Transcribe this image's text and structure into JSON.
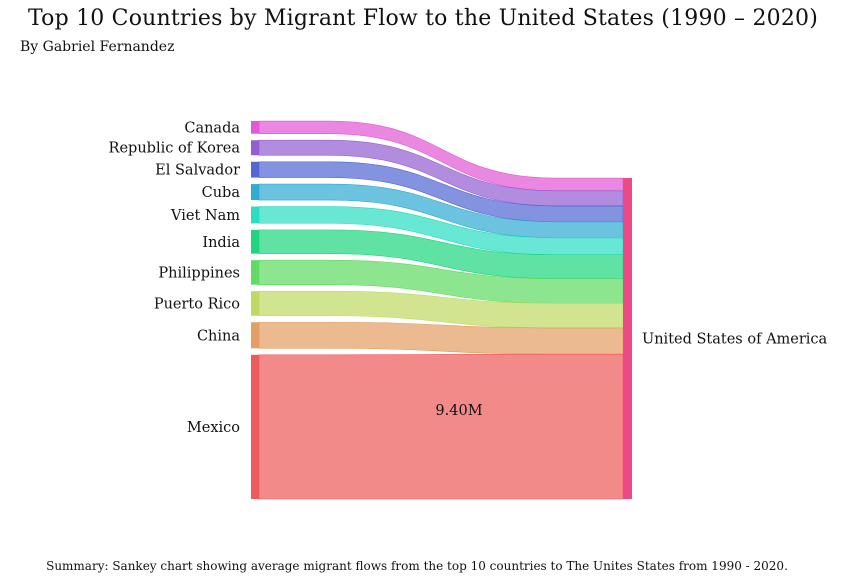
{
  "chart_data": {
    "type": "sankey",
    "title": "Top 10 Countries by Migrant Flow to the United States (1990 – 2020)",
    "subtitle": "By Gabriel Fernandez",
    "summary": "Summary: Sankey chart showing average migrant flows from the top 10 countries to The Unites States from 1990 - 2020.",
    "target": {
      "name": "United States of America",
      "color": "#ec4a86"
    },
    "value_unit": "million migrants (average)",
    "value_label": "9.40M",
    "sources": [
      {
        "name": "Canada",
        "value": 0.83,
        "color": "#e04fd3"
      },
      {
        "name": "Republic of Korea",
        "value": 0.98,
        "color": "#8e56d0"
      },
      {
        "name": "El Salvador",
        "value": 1.03,
        "color": "#4a60d2"
      },
      {
        "name": "Cuba",
        "value": 1.04,
        "color": "#25a6d0"
      },
      {
        "name": "Viet Nam",
        "value": 1.1,
        "color": "#1fdcbf"
      },
      {
        "name": "India",
        "value": 1.55,
        "color": "#13d479"
      },
      {
        "name": "Philippines",
        "value": 1.6,
        "color": "#58d95a"
      },
      {
        "name": "Puerto Rico",
        "value": 1.6,
        "color": "#bcd75b"
      },
      {
        "name": "China",
        "value": 1.7,
        "color": "#e39a5b"
      },
      {
        "name": "Mexico",
        "value": 9.4,
        "color": "#ee5252"
      }
    ]
  }
}
